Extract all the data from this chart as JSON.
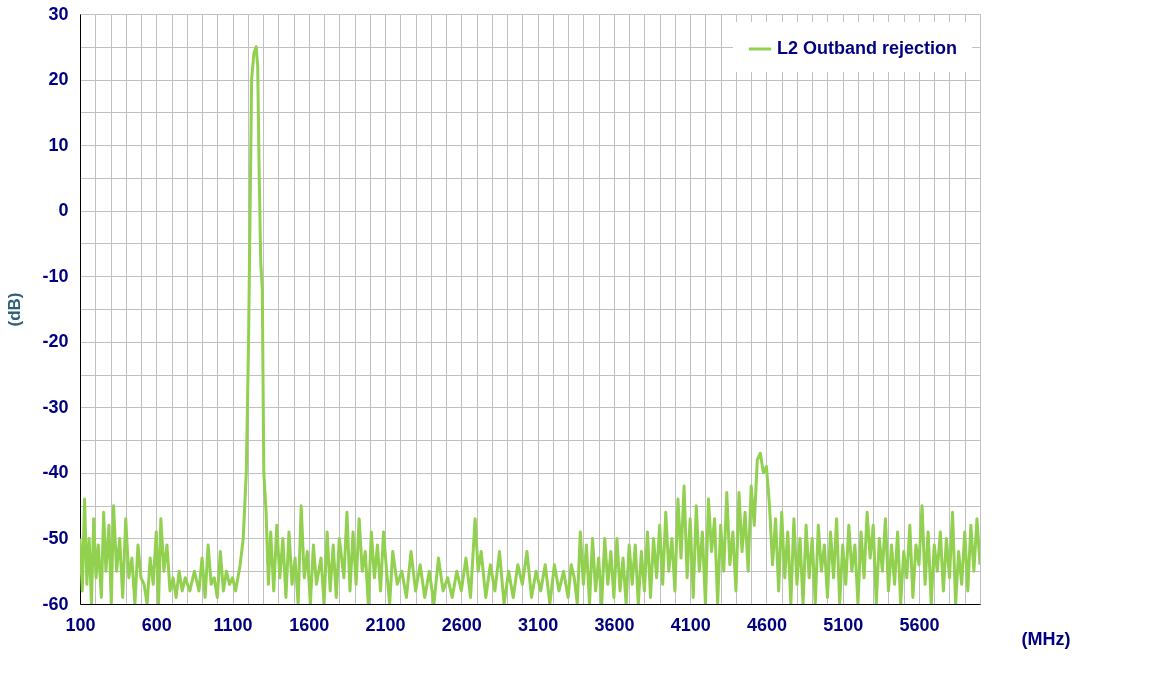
{
  "chart_data": {
    "type": "line",
    "xlabel": "(MHz)",
    "ylabel": "(dB)",
    "xlim": [
      100,
      6000
    ],
    "ylim": [
      -60,
      30
    ],
    "xticks": [
      100,
      {
        "value": 200,
        "label": null
      },
      {
        "value": 300,
        "label": null
      },
      {
        "value": 400,
        "label": null
      },
      {
        "value": 500,
        "label": null
      },
      600,
      {
        "value": 700,
        "label": null
      },
      {
        "value": 800,
        "label": null
      },
      {
        "value": 900,
        "label": null
      },
      {
        "value": 1000,
        "label": null
      },
      1100,
      {
        "value": 1200,
        "label": null
      },
      {
        "value": 1300,
        "label": null
      },
      {
        "value": 1400,
        "label": null
      },
      {
        "value": 1500,
        "label": null
      },
      1600,
      {
        "value": 1700,
        "label": null
      },
      {
        "value": 1800,
        "label": null
      },
      {
        "value": 1900,
        "label": null
      },
      {
        "value": 2000,
        "label": null
      },
      2100,
      {
        "value": 2200,
        "label": null
      },
      {
        "value": 2300,
        "label": null
      },
      {
        "value": 2400,
        "label": null
      },
      {
        "value": 2500,
        "label": null
      },
      2600,
      {
        "value": 2700,
        "label": null
      },
      {
        "value": 2800,
        "label": null
      },
      {
        "value": 2900,
        "label": null
      },
      {
        "value": 3000,
        "label": null
      },
      3100,
      {
        "value": 3200,
        "label": null
      },
      {
        "value": 3300,
        "label": null
      },
      {
        "value": 3400,
        "label": null
      },
      {
        "value": 3500,
        "label": null
      },
      3600,
      {
        "value": 3700,
        "label": null
      },
      {
        "value": 3800,
        "label": null
      },
      {
        "value": 3900,
        "label": null
      },
      {
        "value": 4000,
        "label": null
      },
      4100,
      {
        "value": 4200,
        "label": null
      },
      {
        "value": 4300,
        "label": null
      },
      {
        "value": 4400,
        "label": null
      },
      {
        "value": 4500,
        "label": null
      },
      4600,
      {
        "value": 4700,
        "label": null
      },
      {
        "value": 4800,
        "label": null
      },
      {
        "value": 4900,
        "label": null
      },
      {
        "value": 5000,
        "label": null
      },
      5100,
      {
        "value": 5200,
        "label": null
      },
      {
        "value": 5300,
        "label": null
      },
      {
        "value": 5400,
        "label": null
      },
      {
        "value": 5500,
        "label": null
      },
      5600,
      {
        "value": 5700,
        "label": null
      },
      {
        "value": 5800,
        "label": null
      },
      {
        "value": 5900,
        "label": null
      },
      {
        "value": 6000,
        "label": null
      }
    ],
    "yticks": [
      -60,
      {
        "value": -55,
        "label": null
      },
      -50,
      {
        "value": -45,
        "label": null
      },
      -40,
      {
        "value": -35,
        "label": null
      },
      -30,
      {
        "value": -25,
        "label": null
      },
      -20,
      {
        "value": -15,
        "label": null
      },
      -10,
      {
        "value": -5,
        "label": null
      },
      0,
      {
        "value": 5,
        "label": null
      },
      10,
      {
        "value": 15,
        "label": null
      },
      20,
      {
        "value": 25,
        "label": null
      },
      30
    ],
    "grid": true,
    "legend": "top right",
    "line_style": "solid",
    "marker": "none",
    "series": [
      {
        "name": "L2 Outband rejection",
        "color": "#92d050",
        "x": [
          100,
          115,
          130,
          145,
          160,
          175,
          190,
          205,
          220,
          240,
          255,
          270,
          290,
          305,
          320,
          340,
          360,
          380,
          400,
          420,
          440,
          460,
          480,
          500,
          520,
          540,
          560,
          580,
          600,
          615,
          630,
          650,
          670,
          690,
          710,
          730,
          750,
          770,
          790,
          820,
          850,
          880,
          900,
          920,
          940,
          960,
          980,
          1000,
          1020,
          1040,
          1060,
          1080,
          1100,
          1120,
          1150,
          1170,
          1190,
          1205,
          1215,
          1225,
          1240,
          1255,
          1265,
          1275,
          1285,
          1295,
          1305,
          1320,
          1335,
          1350,
          1370,
          1390,
          1410,
          1430,
          1450,
          1470,
          1490,
          1510,
          1530,
          1550,
          1570,
          1590,
          1610,
          1630,
          1650,
          1680,
          1700,
          1720,
          1740,
          1760,
          1780,
          1800,
          1830,
          1850,
          1870,
          1890,
          1910,
          1930,
          1950,
          1970,
          1990,
          2010,
          2030,
          2050,
          2070,
          2090,
          2110,
          2130,
          2150,
          2180,
          2210,
          2240,
          2270,
          2300,
          2330,
          2360,
          2390,
          2420,
          2450,
          2480,
          2510,
          2540,
          2570,
          2600,
          2630,
          2660,
          2690,
          2710,
          2730,
          2760,
          2790,
          2820,
          2850,
          2880,
          2910,
          2940,
          2970,
          3000,
          3030,
          3060,
          3090,
          3120,
          3150,
          3180,
          3210,
          3240,
          3270,
          3300,
          3320,
          3340,
          3360,
          3380,
          3400,
          3420,
          3440,
          3460,
          3480,
          3500,
          3520,
          3540,
          3560,
          3580,
          3600,
          3620,
          3640,
          3660,
          3680,
          3700,
          3720,
          3740,
          3760,
          3780,
          3800,
          3820,
          3840,
          3860,
          3880,
          3900,
          3920,
          3940,
          3960,
          3980,
          4000,
          4020,
          4040,
          4060,
          4080,
          4100,
          4120,
          4140,
          4160,
          4180,
          4200,
          4220,
          4240,
          4260,
          4280,
          4300,
          4320,
          4340,
          4360,
          4380,
          4400,
          4420,
          4440,
          4460,
          4480,
          4500,
          4520,
          4540,
          4560,
          4580,
          4600,
          4620,
          4640,
          4660,
          4680,
          4700,
          4720,
          4740,
          4760,
          4780,
          4800,
          4820,
          4840,
          4860,
          4880,
          4900,
          4920,
          4940,
          4960,
          4980,
          5000,
          5020,
          5040,
          5060,
          5080,
          5100,
          5120,
          5140,
          5160,
          5180,
          5200,
          5220,
          5240,
          5260,
          5280,
          5300,
          5320,
          5340,
          5360,
          5380,
          5400,
          5420,
          5440,
          5460,
          5480,
          5500,
          5520,
          5540,
          5560,
          5580,
          5600,
          5620,
          5640,
          5660,
          5680,
          5700,
          5720,
          5740,
          5760,
          5780,
          5800,
          5820,
          5840,
          5860,
          5880,
          5900,
          5920,
          5940,
          5960,
          5980,
          6000
        ],
        "values": [
          -50,
          -58,
          -44,
          -57,
          -50,
          -60,
          -47,
          -56,
          -51,
          -59,
          -46,
          -55,
          -48,
          -60,
          -45,
          -55,
          -50,
          -59,
          -47,
          -56,
          -53,
          -60,
          -51,
          -56,
          -57,
          -60,
          -53,
          -57,
          -49,
          -60,
          -47,
          -55,
          -51,
          -58,
          -56,
          -59,
          -55,
          -58,
          -56,
          -58,
          -55,
          -58,
          -53,
          -59,
          -51,
          -57,
          -56,
          -59,
          -52,
          -58,
          -55,
          -57,
          -56,
          -58,
          -54,
          -50,
          -40,
          -20,
          0,
          20,
          24,
          25,
          22,
          5,
          -8,
          -12,
          -40,
          -46,
          -57,
          -49,
          -58,
          -48,
          -56,
          -50,
          -59,
          -49,
          -57,
          -53,
          -60,
          -45,
          -56,
          -52,
          -60,
          -51,
          -57,
          -53,
          -60,
          -49,
          -58,
          -51,
          -59,
          -50,
          -56,
          -46,
          -58,
          -49,
          -57,
          -47,
          -55,
          -52,
          -60,
          -49,
          -56,
          -51,
          -58,
          -49,
          -55,
          -60,
          -52,
          -57,
          -55,
          -59,
          -52,
          -58,
          -54,
          -59,
          -55,
          -60,
          -53,
          -58,
          -56,
          -59,
          -55,
          -58,
          -53,
          -59,
          -47,
          -55,
          -52,
          -59,
          -54,
          -58,
          -52,
          -60,
          -55,
          -59,
          -54,
          -57,
          -52,
          -59,
          -55,
          -58,
          -54,
          -60,
          -54,
          -58,
          -55,
          -59,
          -54,
          -56,
          -60,
          -49,
          -57,
          -51,
          -60,
          -50,
          -58,
          -53,
          -60,
          -50,
          -57,
          -52,
          -59,
          -50,
          -58,
          -53,
          -60,
          -51,
          -57,
          -51,
          -60,
          -52,
          -58,
          -49,
          -59,
          -50,
          -56,
          -48,
          -57,
          -46,
          -55,
          -50,
          -58,
          -44,
          -53,
          -42,
          -56,
          -47,
          -59,
          -45,
          -55,
          -49,
          -60,
          -44,
          -52,
          -47,
          -60,
          -48,
          -55,
          -43,
          -54,
          -49,
          -58,
          -43,
          -52,
          -46,
          -55,
          -42,
          -48,
          -38,
          -37,
          -40,
          -39,
          -45,
          -54,
          -47,
          -58,
          -46,
          -56,
          -49,
          -60,
          -47,
          -57,
          -50,
          -60,
          -48,
          -56,
          -50,
          -60,
          -48,
          -55,
          -51,
          -59,
          -49,
          -56,
          -47,
          -60,
          -51,
          -57,
          -48,
          -55,
          -51,
          -60,
          -49,
          -56,
          -46,
          -53,
          -48,
          -60,
          -50,
          -55,
          -47,
          -58,
          -51,
          -57,
          -49,
          -60,
          -52,
          -56,
          -48,
          -59,
          -51,
          -54,
          -45,
          -57,
          -49,
          -60,
          -51,
          -55,
          -49,
          -58,
          -50,
          -56,
          -46,
          -60,
          -52,
          -57,
          -49,
          -58,
          -48,
          -55,
          -47,
          -54
        ]
      }
    ]
  }
}
